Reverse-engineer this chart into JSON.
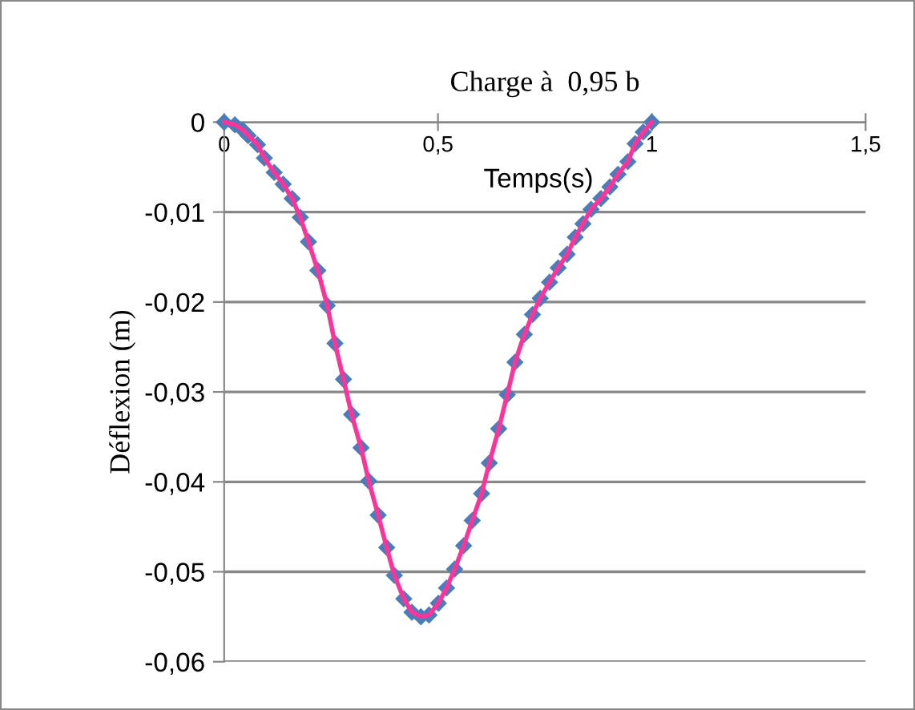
{
  "chart_data": {
    "type": "line",
    "title": "Charge à  0,95 b",
    "xlabel": "Temps(s)",
    "ylabel": "Déflexion (m)",
    "series": [
      {
        "color": "#ff3399",
        "marker": "none",
        "x": [
          0,
          0.025,
          0.044,
          0.056,
          0.078,
          0.094,
          0.117,
          0.138,
          0.159,
          0.178,
          0.197,
          0.219,
          0.241,
          0.259,
          0.279,
          0.298,
          0.32,
          0.338,
          0.36,
          0.38,
          0.398,
          0.42,
          0.439,
          0.46,
          0.479,
          0.501,
          0.52,
          0.539,
          0.56,
          0.58,
          0.602,
          0.62,
          0.642,
          0.662,
          0.68,
          0.702,
          0.721,
          0.739,
          0.761,
          0.781,
          0.802,
          0.821,
          0.839,
          0.858,
          0.881,
          0.902,
          0.921,
          0.944,
          0.961,
          0.98,
          1
        ],
        "values": [
          0,
          -0.0003,
          -0.0009,
          -0.0015,
          -0.0025,
          -0.004,
          -0.0056,
          -0.0069,
          -0.0085,
          -0.0106,
          -0.0133,
          -0.0165,
          -0.0204,
          -0.0246,
          -0.0286,
          -0.0325,
          -0.0362,
          -0.0399,
          -0.0437,
          -0.0473,
          -0.0504,
          -0.053,
          -0.0545,
          -0.055,
          -0.0548,
          -0.0535,
          -0.0518,
          -0.0497,
          -0.0471,
          -0.0443,
          -0.0413,
          -0.0379,
          -0.0341,
          -0.0303,
          -0.0267,
          -0.0236,
          -0.0214,
          -0.0196,
          -0.0178,
          -0.0162,
          -0.0147,
          -0.0128,
          -0.0113,
          -0.0097,
          -0.0085,
          -0.0072,
          -0.0058,
          -0.0044,
          -0.0024,
          -0.0011,
          0
        ]
      },
      {
        "type": "scatter",
        "color": "#4a7ebb",
        "marker": "diamond",
        "x": [
          0,
          0.025,
          0.044,
          0.056,
          0.078,
          0.094,
          0.117,
          0.138,
          0.159,
          0.178,
          0.197,
          0.219,
          0.241,
          0.259,
          0.279,
          0.298,
          0.32,
          0.338,
          0.36,
          0.38,
          0.398,
          0.42,
          0.439,
          0.46,
          0.479,
          0.501,
          0.52,
          0.539,
          0.56,
          0.58,
          0.602,
          0.62,
          0.642,
          0.662,
          0.68,
          0.702,
          0.721,
          0.739,
          0.761,
          0.781,
          0.802,
          0.821,
          0.839,
          0.858,
          0.881,
          0.902,
          0.921,
          0.944,
          0.961,
          0.98,
          1
        ],
        "values": [
          0,
          -0.0003,
          -0.0009,
          -0.0015,
          -0.0025,
          -0.004,
          -0.0056,
          -0.0069,
          -0.0085,
          -0.0106,
          -0.0133,
          -0.0165,
          -0.0204,
          -0.0246,
          -0.0286,
          -0.0325,
          -0.0362,
          -0.0399,
          -0.0437,
          -0.0473,
          -0.0504,
          -0.053,
          -0.0545,
          -0.055,
          -0.0548,
          -0.0535,
          -0.0518,
          -0.0497,
          -0.0471,
          -0.0443,
          -0.0413,
          -0.0379,
          -0.0341,
          -0.0303,
          -0.0267,
          -0.0236,
          -0.0214,
          -0.0196,
          -0.0178,
          -0.0162,
          -0.0147,
          -0.0128,
          -0.0113,
          -0.0097,
          -0.0085,
          -0.0072,
          -0.0058,
          -0.0044,
          -0.0024,
          -0.0011,
          0
        ]
      }
    ],
    "xlim": [
      0,
      1.5
    ],
    "xticks": [
      0,
      {
        "value": 0.5,
        "label": "0,5"
      },
      1,
      {
        "value": 1.5,
        "label": "1,5"
      }
    ],
    "ylim": [
      -0.06,
      0
    ],
    "yticks": [
      {
        "value": -0.06,
        "label": "-0,06"
      },
      {
        "value": -0.05,
        "label": "-0,05"
      },
      {
        "value": -0.04,
        "label": "-0,04"
      },
      {
        "value": -0.03,
        "label": "-0,03"
      },
      {
        "value": -0.02,
        "label": "-0,02"
      },
      {
        "value": -0.01,
        "label": "-0,01"
      },
      0
    ],
    "grid": "y",
    "line_style": "solid",
    "legend": false
  }
}
